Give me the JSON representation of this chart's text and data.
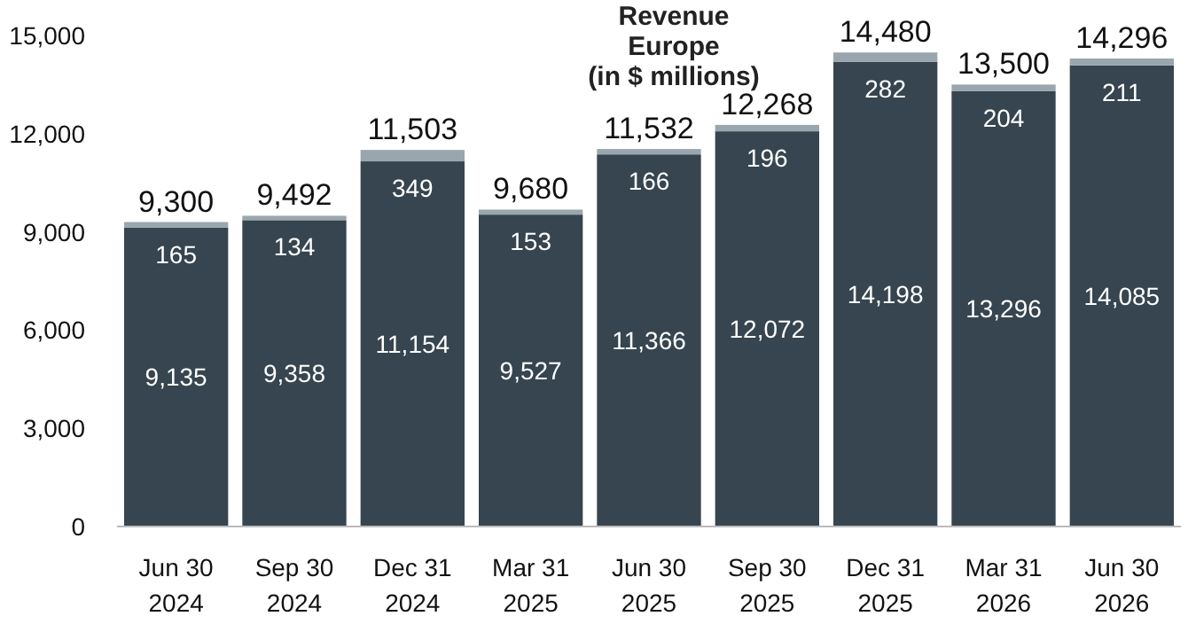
{
  "chart_data": {
    "type": "bar",
    "title": "Revenue\nEurope\n(in $ millions)",
    "stacked": true,
    "categories": [
      "Jun 30\n2024",
      "Sep 30\n2024",
      "Dec 31\n2024",
      "Mar 31\n2025",
      "Jun 30\n2025",
      "Sep 30\n2025",
      "Dec 31\n2025",
      "Mar 31\n2026",
      "Jun 30\n2026"
    ],
    "series": [
      {
        "color": "#36454f",
        "values": [
          9135,
          9358,
          11154,
          9527,
          11366,
          12072,
          14198,
          13296,
          14085
        ],
        "value_labels": [
          "9,135",
          "9,358",
          "11,154",
          "9,527",
          "11,366",
          "12,072",
          "14,198",
          "13,296",
          "14,085"
        ]
      },
      {
        "color": "#9aa6ae",
        "values": [
          165,
          134,
          349,
          153,
          166,
          196,
          282,
          204,
          211
        ],
        "value_labels": [
          "165",
          "134",
          "349",
          "153",
          "166",
          "196",
          "282",
          "204",
          "211"
        ]
      }
    ],
    "totals": [
      "9,300",
      "9,492",
      "11,503",
      "9,680",
      "11,532",
      "12,268",
      "14,480",
      "13,500",
      "14,296"
    ],
    "ylim": [
      0,
      15000
    ],
    "yticks": [
      {
        "value": 0,
        "label": "0"
      },
      {
        "value": 3000,
        "label": "3,000"
      },
      {
        "value": 6000,
        "label": "6,000"
      },
      {
        "value": 9000,
        "label": "9,000"
      },
      {
        "value": 12000,
        "label": "12,000"
      },
      {
        "value": 15000,
        "label": "15,000"
      }
    ]
  }
}
